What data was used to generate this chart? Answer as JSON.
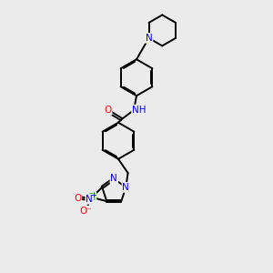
{
  "background_color": "#ebebeb",
  "bond_color": "#000000",
  "atom_colors": {
    "N": "#0000ff",
    "O": "#ff0000",
    "Cl": "#00cc00",
    "C": "#000000",
    "H": "#888888"
  },
  "lw": 1.4,
  "off": 0.055,
  "xlim": [
    0,
    10
  ],
  "ylim": [
    0,
    12.5
  ]
}
